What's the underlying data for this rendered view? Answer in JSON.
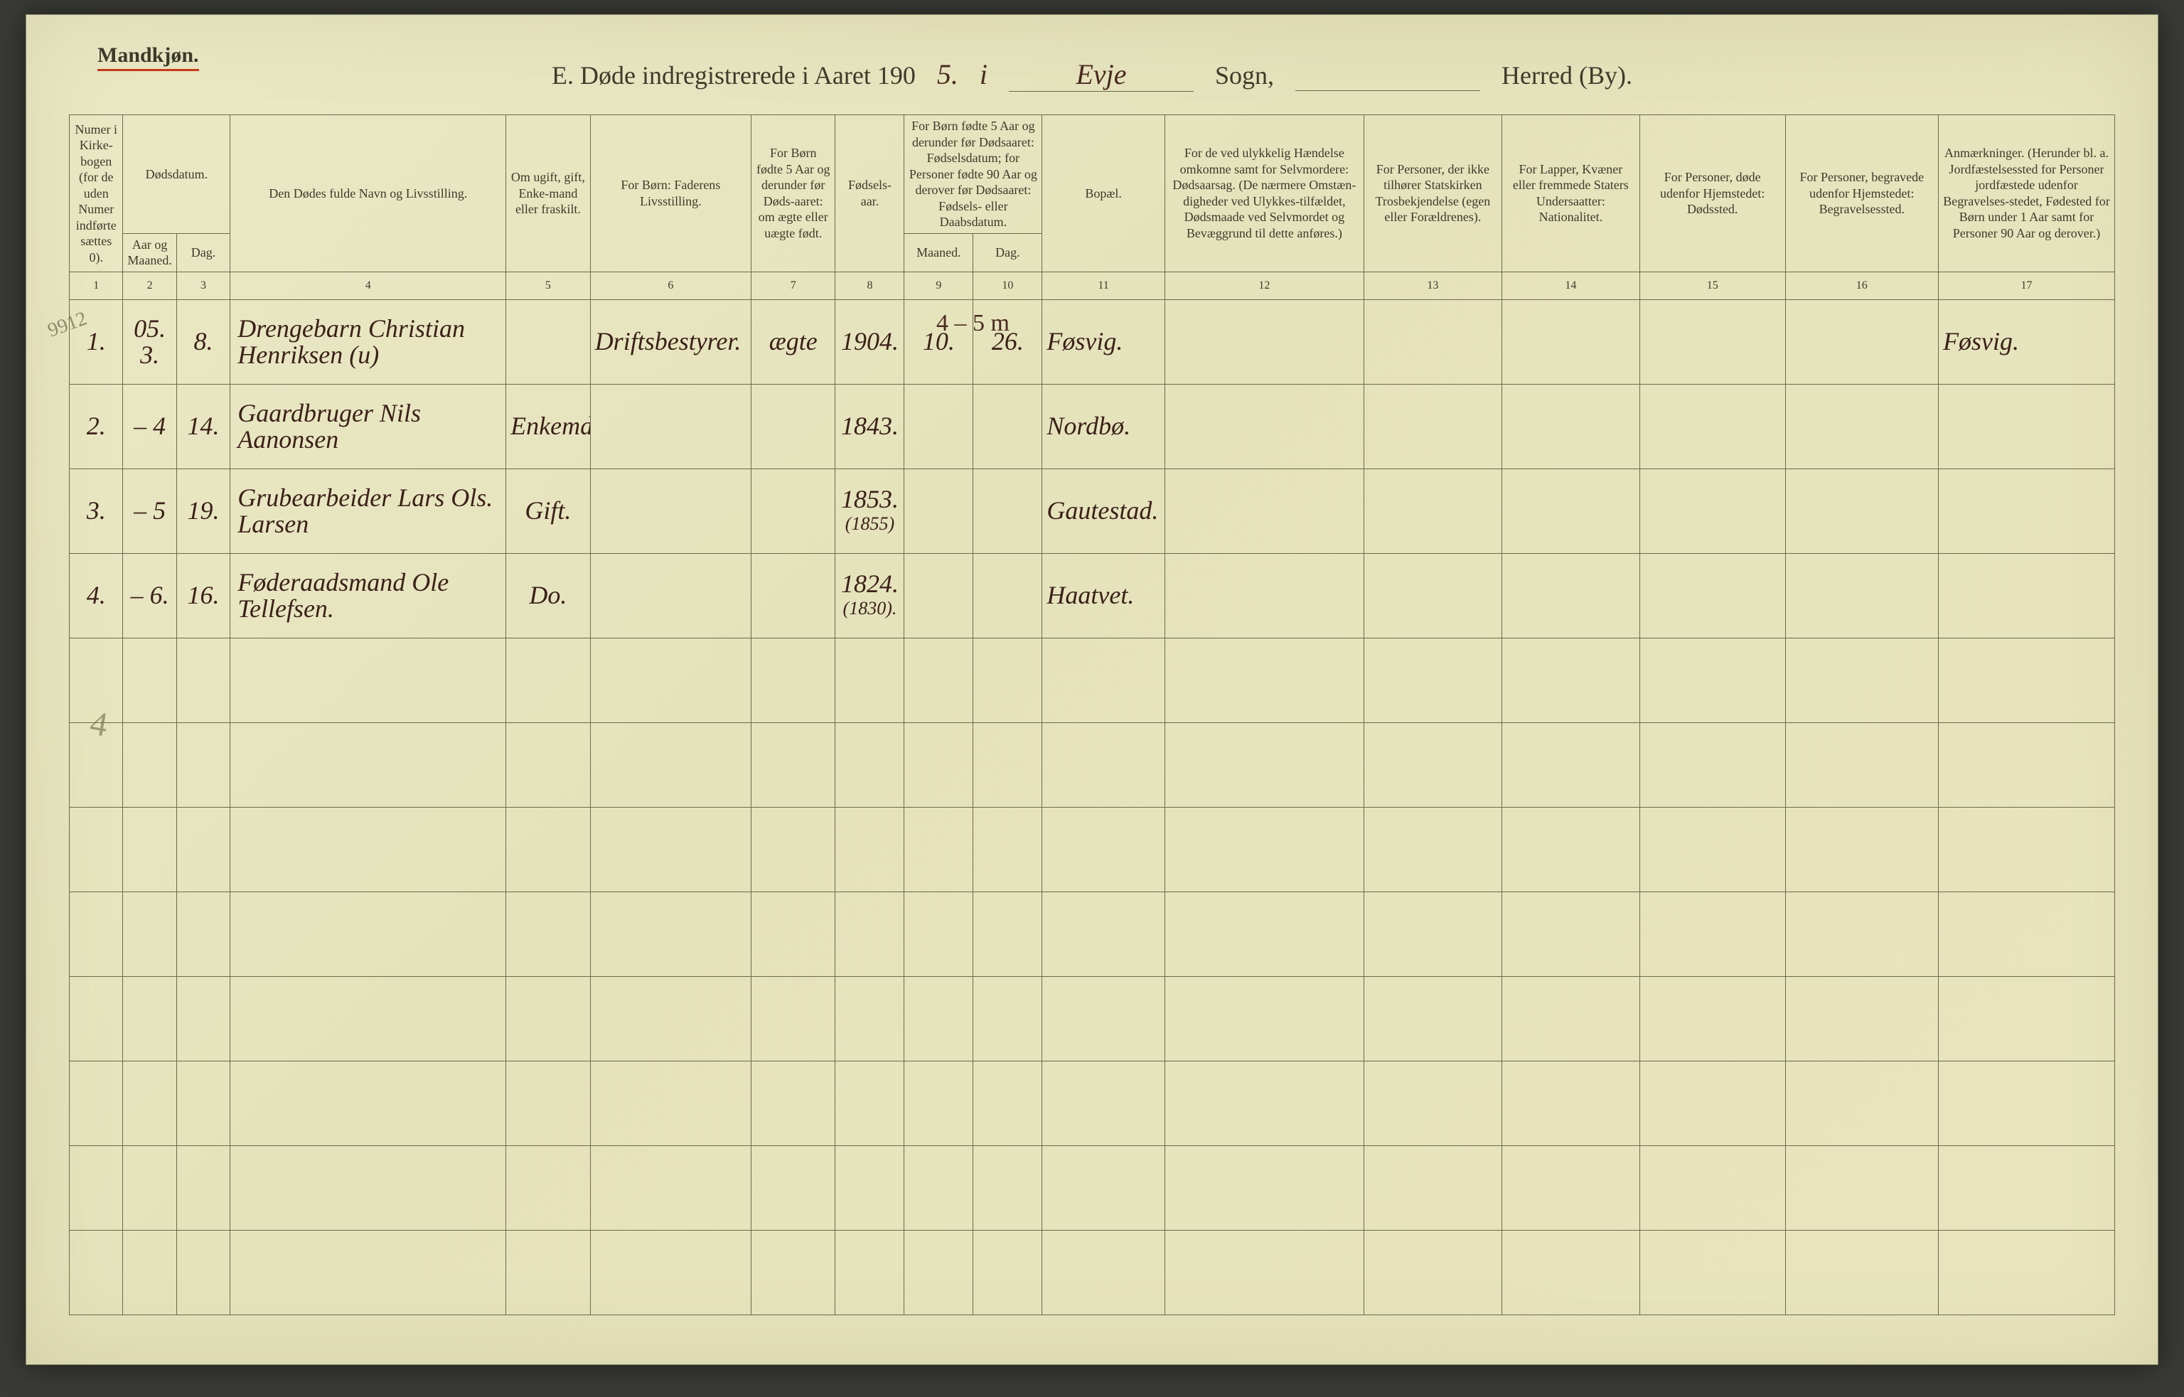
{
  "page": {
    "gender_label": "Mandkjøn.",
    "title_prefix": "E.  Døde indregistrerede i Aaret 190",
    "year_suffix_hand": "5.",
    "title_in": "i",
    "parish_hand": "Evje",
    "sogne_label": "Sogn,",
    "herred_label": "Herred (By).",
    "margin_note": "9912",
    "top_hand_note": "4 – 5 m",
    "tick_mark": "4"
  },
  "columns": {
    "c1": {
      "main": "Numer i Kirke-bogen (for de uden Numer indførte sættes 0).",
      "num": "1"
    },
    "c2_3": {
      "group": "Dødsdatum.",
      "c2": "Aar og Maaned.",
      "c3": "Dag.",
      "num2": "2",
      "num3": "3"
    },
    "c4": {
      "main": "Den Dødes fulde Navn og Livsstilling.",
      "num": "4"
    },
    "c5": {
      "main": "Om ugift, gift, Enke-mand eller fraskilt.",
      "num": "5"
    },
    "c6": {
      "main": "For Børn:\nFaderens Livsstilling.",
      "num": "6"
    },
    "c7": {
      "main": "For Børn fødte 5 Aar og derunder før Døds-aaret: om ægte eller uægte født.",
      "num": "7"
    },
    "c8": {
      "main": "Fødsels-aar.",
      "num": "8"
    },
    "c9_10": {
      "group": "For Børn fødte 5 Aar og derunder før Dødsaaret: Fødselsdatum; for Personer fødte 90 Aar og derover før Dødsaaret: Fødsels- eller Daabsdatum.",
      "c9": "Maaned.",
      "c10": "Dag.",
      "num9": "9",
      "num10": "10"
    },
    "c11": {
      "main": "Bopæl.",
      "num": "11"
    },
    "c12": {
      "main": "For de ved ulykkelig Hændelse omkomne samt for Selvmordere:\nDødsaarsag.\n(De nærmere Omstæn-digheder ved Ulykkes-tilfældet, Dødsmaade ved Selvmordet og Bevæggrund til dette anføres.)",
      "num": "12"
    },
    "c13": {
      "main": "For Personer, der ikke tilhører Statskirken\nTrosbekjendelse (egen eller Forældrenes).",
      "num": "13"
    },
    "c14": {
      "main": "For Lapper, Kvæner eller fremmede Staters Undersaatter:\nNationalitet.",
      "num": "14"
    },
    "c15": {
      "main": "For Personer, døde udenfor Hjemstedet:\nDødssted.",
      "num": "15"
    },
    "c16": {
      "main": "For Personer, begravede udenfor Hjemstedet:\nBegravelsessted.",
      "num": "16"
    },
    "c17": {
      "main": "Anmærkninger.\n(Herunder bl. a. Jordfæstelsessted for Personer jordfæstede udenfor Begravelses-stedet, Fødested for Børn under 1 Aar samt for Personer 90 Aar og derover.)",
      "num": "17"
    }
  },
  "rows": [
    {
      "num": "1.",
      "aar_m": "05. 3.",
      "dag": "8.",
      "navn": "Drengebarn Christian Henriksen (u)",
      "stand": "",
      "fader": "Driftsbestyrer.",
      "aegte": "ægte",
      "faar": "1904.",
      "fmnd": "10.",
      "fdag": "26.",
      "bopael": "Føsvig.",
      "c17": "Føsvig."
    },
    {
      "num": "2.",
      "aar_m": "– 4",
      "dag": "14.",
      "navn": "Gaardbruger Nils Aanonsen",
      "stand": "Enkemd.",
      "fader": "",
      "aegte": "",
      "faar": "1843.",
      "fmnd": "",
      "fdag": "",
      "bopael": "Nordbø.",
      "c17": ""
    },
    {
      "num": "3.",
      "aar_m": "– 5",
      "dag": "19.",
      "navn": "Grubearbeider Lars Ols. Larsen",
      "stand": "Gift.",
      "fader": "",
      "aegte": "",
      "faar": "1853.",
      "faar_sub": "(1855)",
      "fmnd": "",
      "fdag": "",
      "bopael": "Gautestad.",
      "c17": ""
    },
    {
      "num": "4.",
      "aar_m": "– 6.",
      "dag": "16.",
      "navn": "Føderaadsmand Ole Tellefsen.",
      "stand": "Do.",
      "fader": "",
      "aegte": "",
      "faar": "1824.",
      "faar_sub": "(1830).",
      "fmnd": "",
      "fdag": "",
      "bopael": "Haatvet.",
      "c17": ""
    }
  ],
  "empty_rows": 8,
  "colors": {
    "paper": "#e7e4bd",
    "ink_print": "#3b3b2a",
    "ink_hand": "#3b2018",
    "underline_red": "#c23a1a",
    "rule": "#6b6a4a"
  }
}
